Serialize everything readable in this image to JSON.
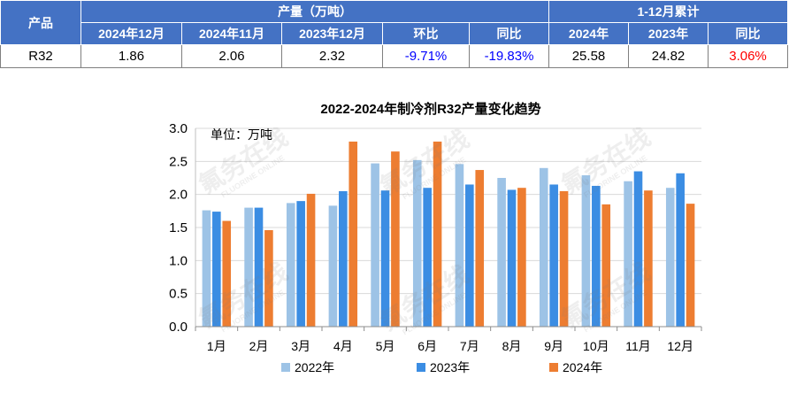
{
  "table": {
    "header_product": "产品",
    "header_output": "产量（万吨）",
    "header_cumulative": "1-12月累计",
    "columns": [
      "2024年12月",
      "2024年11月",
      "2023年12月",
      "环比",
      "同比",
      "2024年",
      "2023年",
      "同比"
    ],
    "rows": [
      {
        "product": "R32",
        "cells": [
          "1.86",
          "2.06",
          "2.32",
          "-9.71%",
          "-19.83%",
          "25.58",
          "24.82",
          "3.06%"
        ]
      }
    ]
  },
  "colors": {
    "header_bg": "#4472C4",
    "header_text": "#FFFFFF",
    "decrease_text": "#0000FF",
    "increase_text": "#FF0000"
  },
  "chart_data": {
    "type": "bar",
    "title": "2022-2024年制冷剂R32产量变化趋势",
    "unit_label": "单位：万吨",
    "categories": [
      "1月",
      "2月",
      "3月",
      "4月",
      "5月",
      "6月",
      "7月",
      "8月",
      "9月",
      "10月",
      "11月",
      "12月"
    ],
    "series": [
      {
        "name": "2022年",
        "color": "#9DC3E6",
        "values": [
          1.76,
          1.8,
          1.87,
          1.83,
          2.47,
          2.52,
          2.46,
          2.25,
          2.4,
          2.29,
          2.2,
          2.1
        ]
      },
      {
        "name": "2023年",
        "color": "#3B8DE3",
        "values": [
          1.74,
          1.8,
          1.9,
          2.05,
          2.06,
          2.1,
          2.15,
          2.07,
          2.15,
          2.13,
          2.35,
          2.32
        ]
      },
      {
        "name": "2024年",
        "color": "#ED7D31",
        "values": [
          1.6,
          1.46,
          2.01,
          2.8,
          2.65,
          2.8,
          2.37,
          2.1,
          2.05,
          1.85,
          2.06,
          1.86
        ]
      }
    ],
    "ylim": [
      0,
      3.0
    ],
    "yticks": [
      "0.0",
      "0.5",
      "1.0",
      "1.5",
      "2.0",
      "2.5",
      "3.0"
    ],
    "grid": true,
    "legend": "bottom"
  },
  "watermark": {
    "text": "氟务在线",
    "subtext": "FLUORINE ONLINE"
  }
}
